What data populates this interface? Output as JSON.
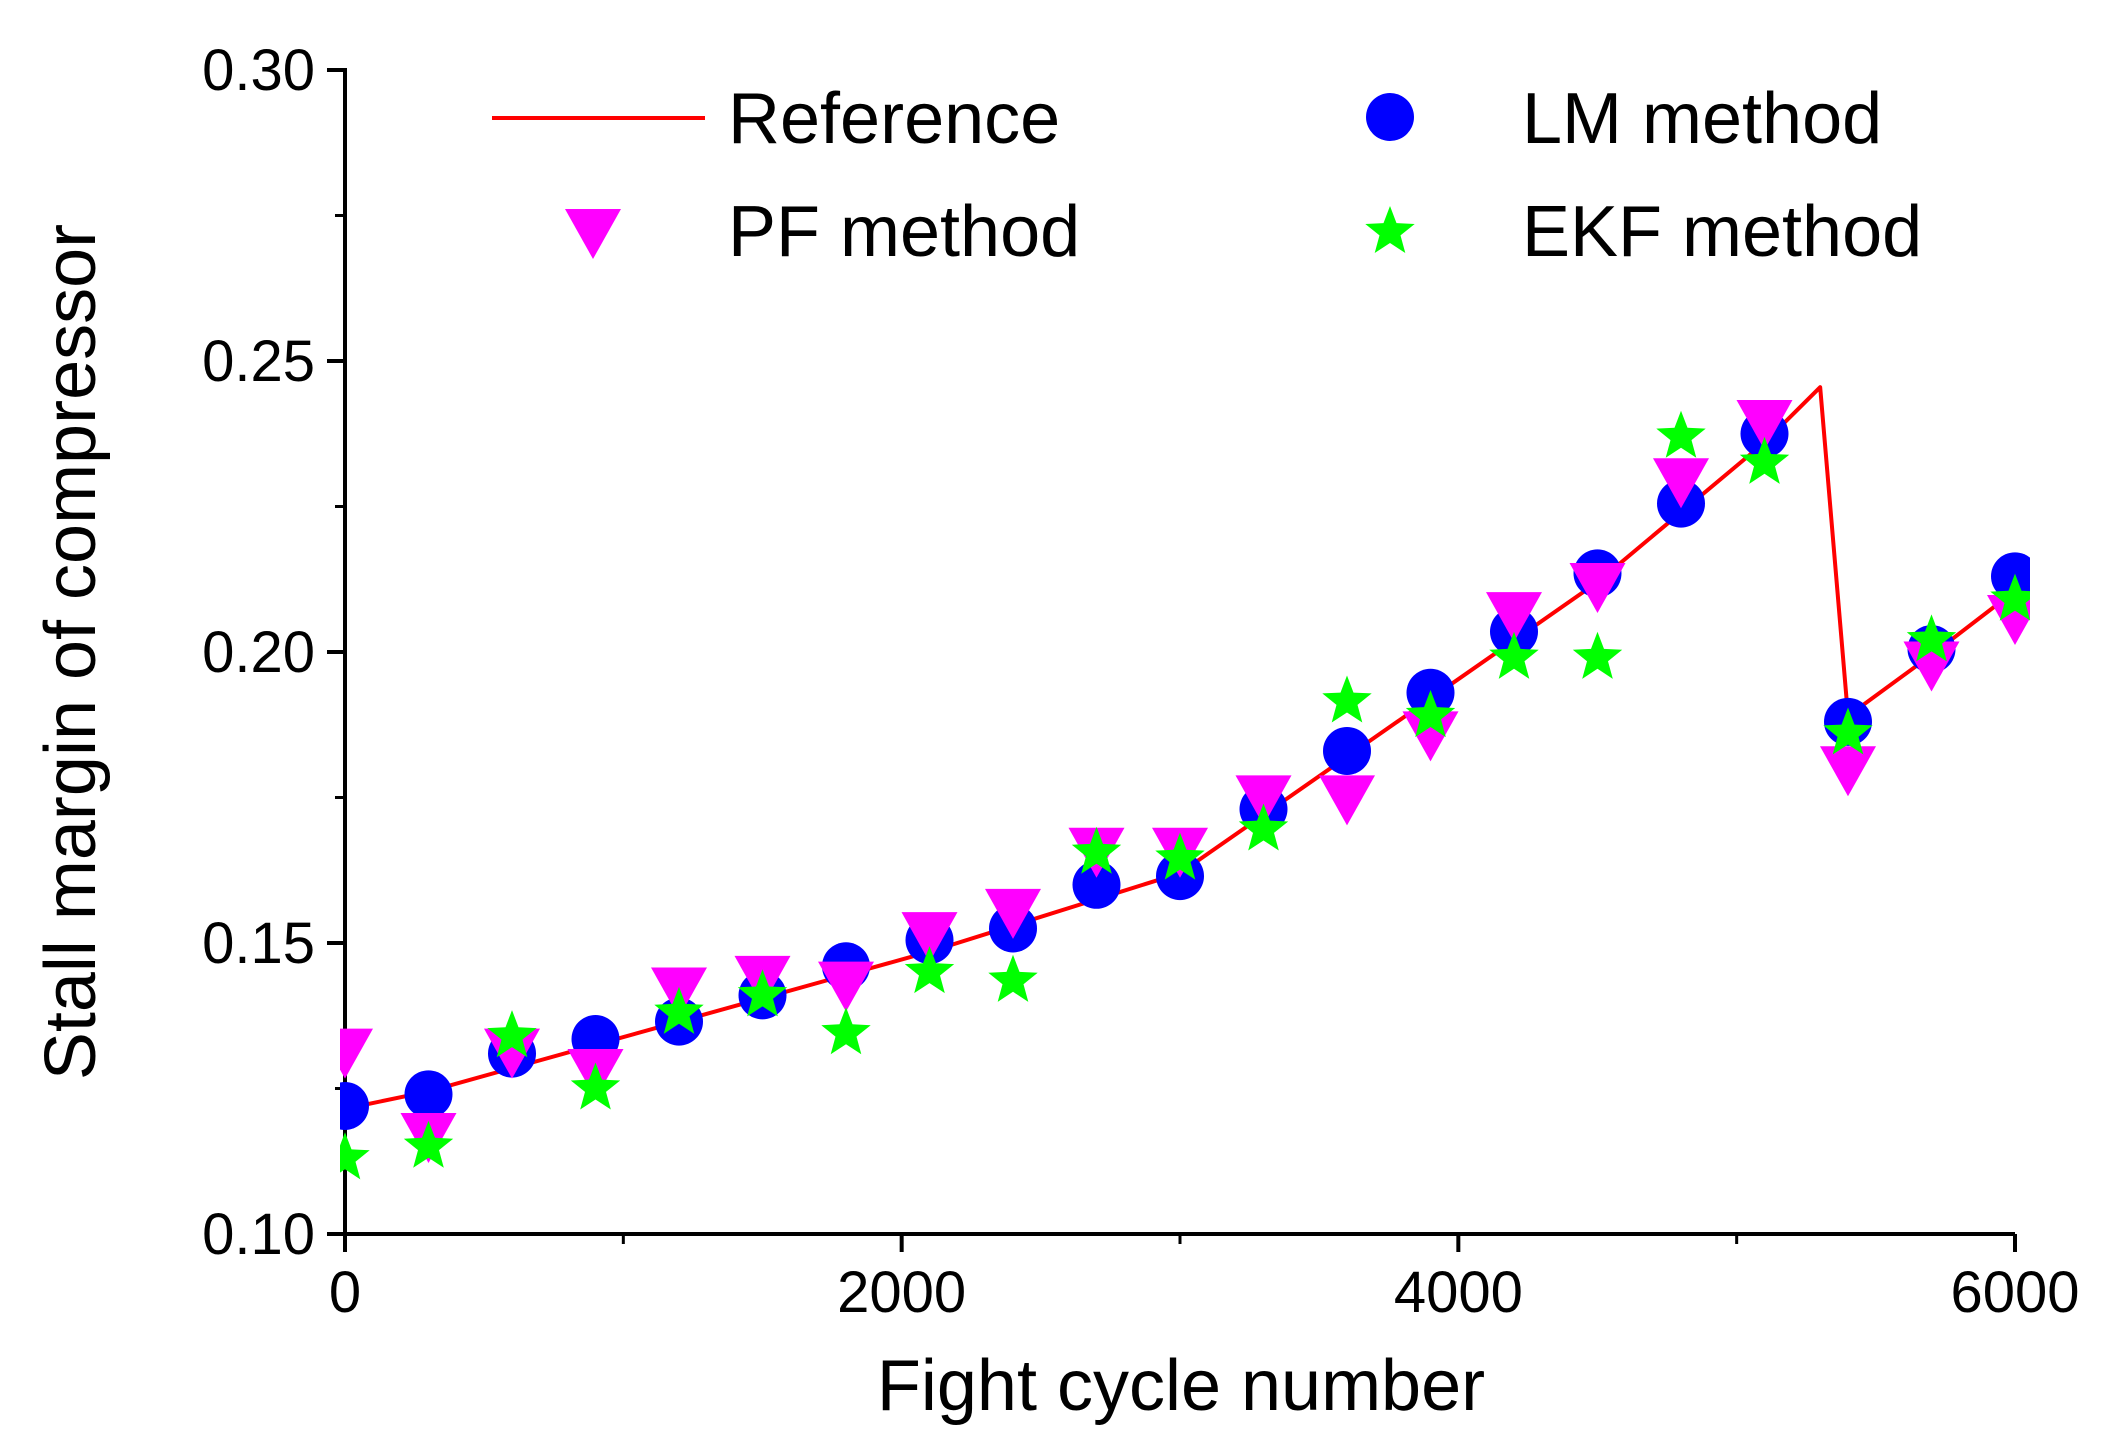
{
  "chart_data": {
    "type": "scatter",
    "title": "",
    "xlabel": "Fight cycle number",
    "ylabel": "Stall margin of compressor",
    "xlim": [
      0,
      6000
    ],
    "ylim": [
      0.1,
      0.3
    ],
    "xticks": [
      0,
      2000,
      4000,
      6000
    ],
    "yticks": [
      0.1,
      0.15,
      0.2,
      0.25,
      0.3
    ],
    "xtick_labels": [
      "0",
      "2000",
      "4000",
      "6000"
    ],
    "ytick_labels": [
      "0.10",
      "0.15",
      "0.20",
      "0.25",
      "0.30"
    ],
    "grid": false,
    "legend_position": "top",
    "series": [
      {
        "name": "Reference",
        "kind": "line",
        "color": "#ff0000",
        "x": [
          0,
          300,
          600,
          900,
          1200,
          1500,
          1800,
          2100,
          2400,
          2700,
          3000,
          3300,
          3600,
          3900,
          4200,
          4500,
          4800,
          5100,
          5300,
          5400,
          5700,
          6000
        ],
        "y": [
          0.1215,
          0.1245,
          0.1285,
          0.1325,
          0.1365,
          0.1405,
          0.1445,
          0.1485,
          0.153,
          0.1575,
          0.162,
          0.172,
          0.182,
          0.192,
          0.202,
          0.212,
          0.224,
          0.236,
          0.2455,
          0.189,
          0.1995,
          0.2105
        ]
      },
      {
        "name": "LM method",
        "kind": "marker",
        "marker": "circle",
        "color": "#0000ff",
        "x": [
          0,
          300,
          600,
          900,
          1200,
          1500,
          1800,
          2100,
          2400,
          2700,
          3000,
          3300,
          3600,
          3900,
          4200,
          4500,
          4800,
          5100,
          5400,
          5700,
          6000
        ],
        "y": [
          0.122,
          0.124,
          0.131,
          0.1335,
          0.1365,
          0.141,
          0.146,
          0.1505,
          0.1525,
          0.16,
          0.1615,
          0.173,
          0.183,
          0.193,
          0.2035,
          0.2135,
          0.2255,
          0.2375,
          0.188,
          0.2005,
          0.213
        ]
      },
      {
        "name": "PF method",
        "kind": "marker",
        "marker": "triangle-down",
        "color": "#ff00ff",
        "x": [
          0,
          300,
          600,
          900,
          1200,
          1500,
          1800,
          2100,
          2400,
          2700,
          3000,
          3300,
          3600,
          3900,
          4200,
          4500,
          4800,
          5100,
          5400,
          5700,
          6000
        ],
        "y": [
          0.131,
          0.1165,
          0.131,
          0.1275,
          0.1415,
          0.1435,
          0.1425,
          0.151,
          0.155,
          0.1655,
          0.1655,
          0.1745,
          0.1745,
          0.1855,
          0.206,
          0.211,
          0.229,
          0.239,
          0.1795,
          0.1975,
          0.2055
        ]
      },
      {
        "name": "EKF method",
        "kind": "marker",
        "marker": "star",
        "color": "#00ff00",
        "x": [
          0,
          300,
          600,
          900,
          1200,
          1500,
          1800,
          2100,
          2400,
          2700,
          3000,
          3300,
          3600,
          3900,
          4200,
          4500,
          4800,
          5100,
          5400,
          5700,
          6000
        ],
        "y": [
          0.113,
          0.115,
          0.134,
          0.125,
          0.138,
          0.141,
          0.1345,
          0.145,
          0.1435,
          0.1655,
          0.1645,
          0.1695,
          0.1915,
          0.189,
          0.199,
          0.199,
          0.237,
          0.2325,
          0.186,
          0.202,
          0.209
        ]
      }
    ]
  }
}
